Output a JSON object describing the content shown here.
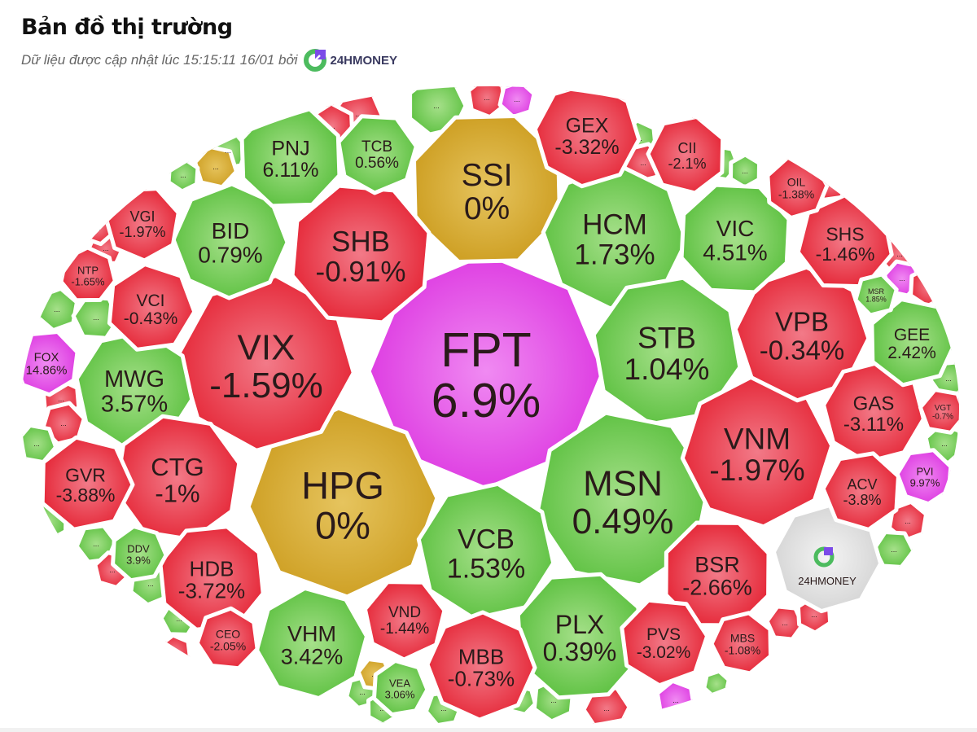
{
  "header": {
    "title": "Bản đồ thị trường",
    "subtitle": "Dữ liệu được cập nhật lúc 15:15:11 16/01 bởi",
    "brand": "24HMONEY"
  },
  "colors": {
    "down": "#e8323f",
    "up": "#6cc94d",
    "flat": "#d5a82e",
    "ceiling": "#e244e6",
    "brand": "#dcdcdc"
  },
  "chart_data": {
    "type": "treemap",
    "shape": "voronoi-ellipse",
    "items": [
      {
        "ticker": "FPT",
        "change": "6.9%",
        "status": "ceiling"
      },
      {
        "ticker": "SSI",
        "change": "0%",
        "status": "flat"
      },
      {
        "ticker": "HPG",
        "change": "0%",
        "status": "flat"
      },
      {
        "ticker": "VIX",
        "change": "-1.59%",
        "status": "down"
      },
      {
        "ticker": "SHB",
        "change": "-0.91%",
        "status": "down"
      },
      {
        "ticker": "HCM",
        "change": "1.73%",
        "status": "up"
      },
      {
        "ticker": "STB",
        "change": "1.04%",
        "status": "up"
      },
      {
        "ticker": "MSN",
        "change": "0.49%",
        "status": "up"
      },
      {
        "ticker": "VCB",
        "change": "1.53%",
        "status": "up"
      },
      {
        "ticker": "PLX",
        "change": "0.39%",
        "status": "up"
      },
      {
        "ticker": "VNM",
        "change": "-1.97%",
        "status": "down"
      },
      {
        "ticker": "VPB",
        "change": "-0.34%",
        "status": "down"
      },
      {
        "ticker": "VIC",
        "change": "4.51%",
        "status": "up"
      },
      {
        "ticker": "BID",
        "change": "0.79%",
        "status": "up"
      },
      {
        "ticker": "MWG",
        "change": "3.57%",
        "status": "up"
      },
      {
        "ticker": "CTG",
        "change": "-1%",
        "status": "down"
      },
      {
        "ticker": "GVR",
        "change": "-3.88%",
        "status": "down"
      },
      {
        "ticker": "HDB",
        "change": "-3.72%",
        "status": "down"
      },
      {
        "ticker": "VHM",
        "change": "3.42%",
        "status": "up"
      },
      {
        "ticker": "MBB",
        "change": "-0.73%",
        "status": "down"
      },
      {
        "ticker": "BSR",
        "change": "-2.66%",
        "status": "down"
      },
      {
        "ticker": "PVS",
        "change": "-3.02%",
        "status": "down"
      },
      {
        "ticker": "GAS",
        "change": "-3.11%",
        "status": "down"
      },
      {
        "ticker": "ACV",
        "change": "-3.8%",
        "status": "down"
      },
      {
        "ticker": "GEE",
        "change": "2.42%",
        "status": "up"
      },
      {
        "ticker": "SHS",
        "change": "-1.46%",
        "status": "down"
      },
      {
        "ticker": "VGI",
        "change": "-1.97%",
        "status": "down"
      },
      {
        "ticker": "VCI",
        "change": "-0.43%",
        "status": "down"
      },
      {
        "ticker": "PNJ",
        "change": "6.11%",
        "status": "up"
      },
      {
        "ticker": "TCB",
        "change": "0.56%",
        "status": "up"
      },
      {
        "ticker": "GEX",
        "change": "-3.32%",
        "status": "down"
      },
      {
        "ticker": "CII",
        "change": "-2.1%",
        "status": "down"
      },
      {
        "ticker": "OIL",
        "change": "-1.38%",
        "status": "down"
      },
      {
        "ticker": "NTP",
        "change": "-1.65%",
        "status": "down"
      },
      {
        "ticker": "FOX",
        "change": "14.86%",
        "status": "ceiling"
      },
      {
        "ticker": "DDV",
        "change": "3.9%",
        "status": "up"
      },
      {
        "ticker": "CEO",
        "change": "-2.05%",
        "status": "down"
      },
      {
        "ticker": "VND",
        "change": "-1.44%",
        "status": "down"
      },
      {
        "ticker": "VEA",
        "change": "3.06%",
        "status": "up"
      },
      {
        "ticker": "MBS",
        "change": "-1.08%",
        "status": "down"
      },
      {
        "ticker": "MSR",
        "change": "1.85%",
        "status": "up"
      },
      {
        "ticker": "VGT",
        "change": "-0.7%",
        "status": "down"
      },
      {
        "ticker": "PVI",
        "change": "9.97%",
        "status": "ceiling"
      }
    ],
    "others": {
      "label": "...",
      "statuses": [
        "up",
        "down",
        "ceiling",
        "down",
        "down",
        "up",
        "flat",
        "up",
        "down",
        "down",
        "up",
        "up",
        "down",
        "down",
        "up",
        "up",
        "up",
        "down",
        "up",
        "up",
        "down",
        "up",
        "flat",
        "up",
        "up",
        "up",
        "up",
        "down",
        "ceiling",
        "up",
        "down",
        "down",
        "down",
        "ceiling",
        "down",
        "up",
        "up",
        "down",
        "up",
        "up",
        "down",
        "up",
        "up",
        "down"
      ]
    },
    "brand_cell": "24HMONEY"
  }
}
